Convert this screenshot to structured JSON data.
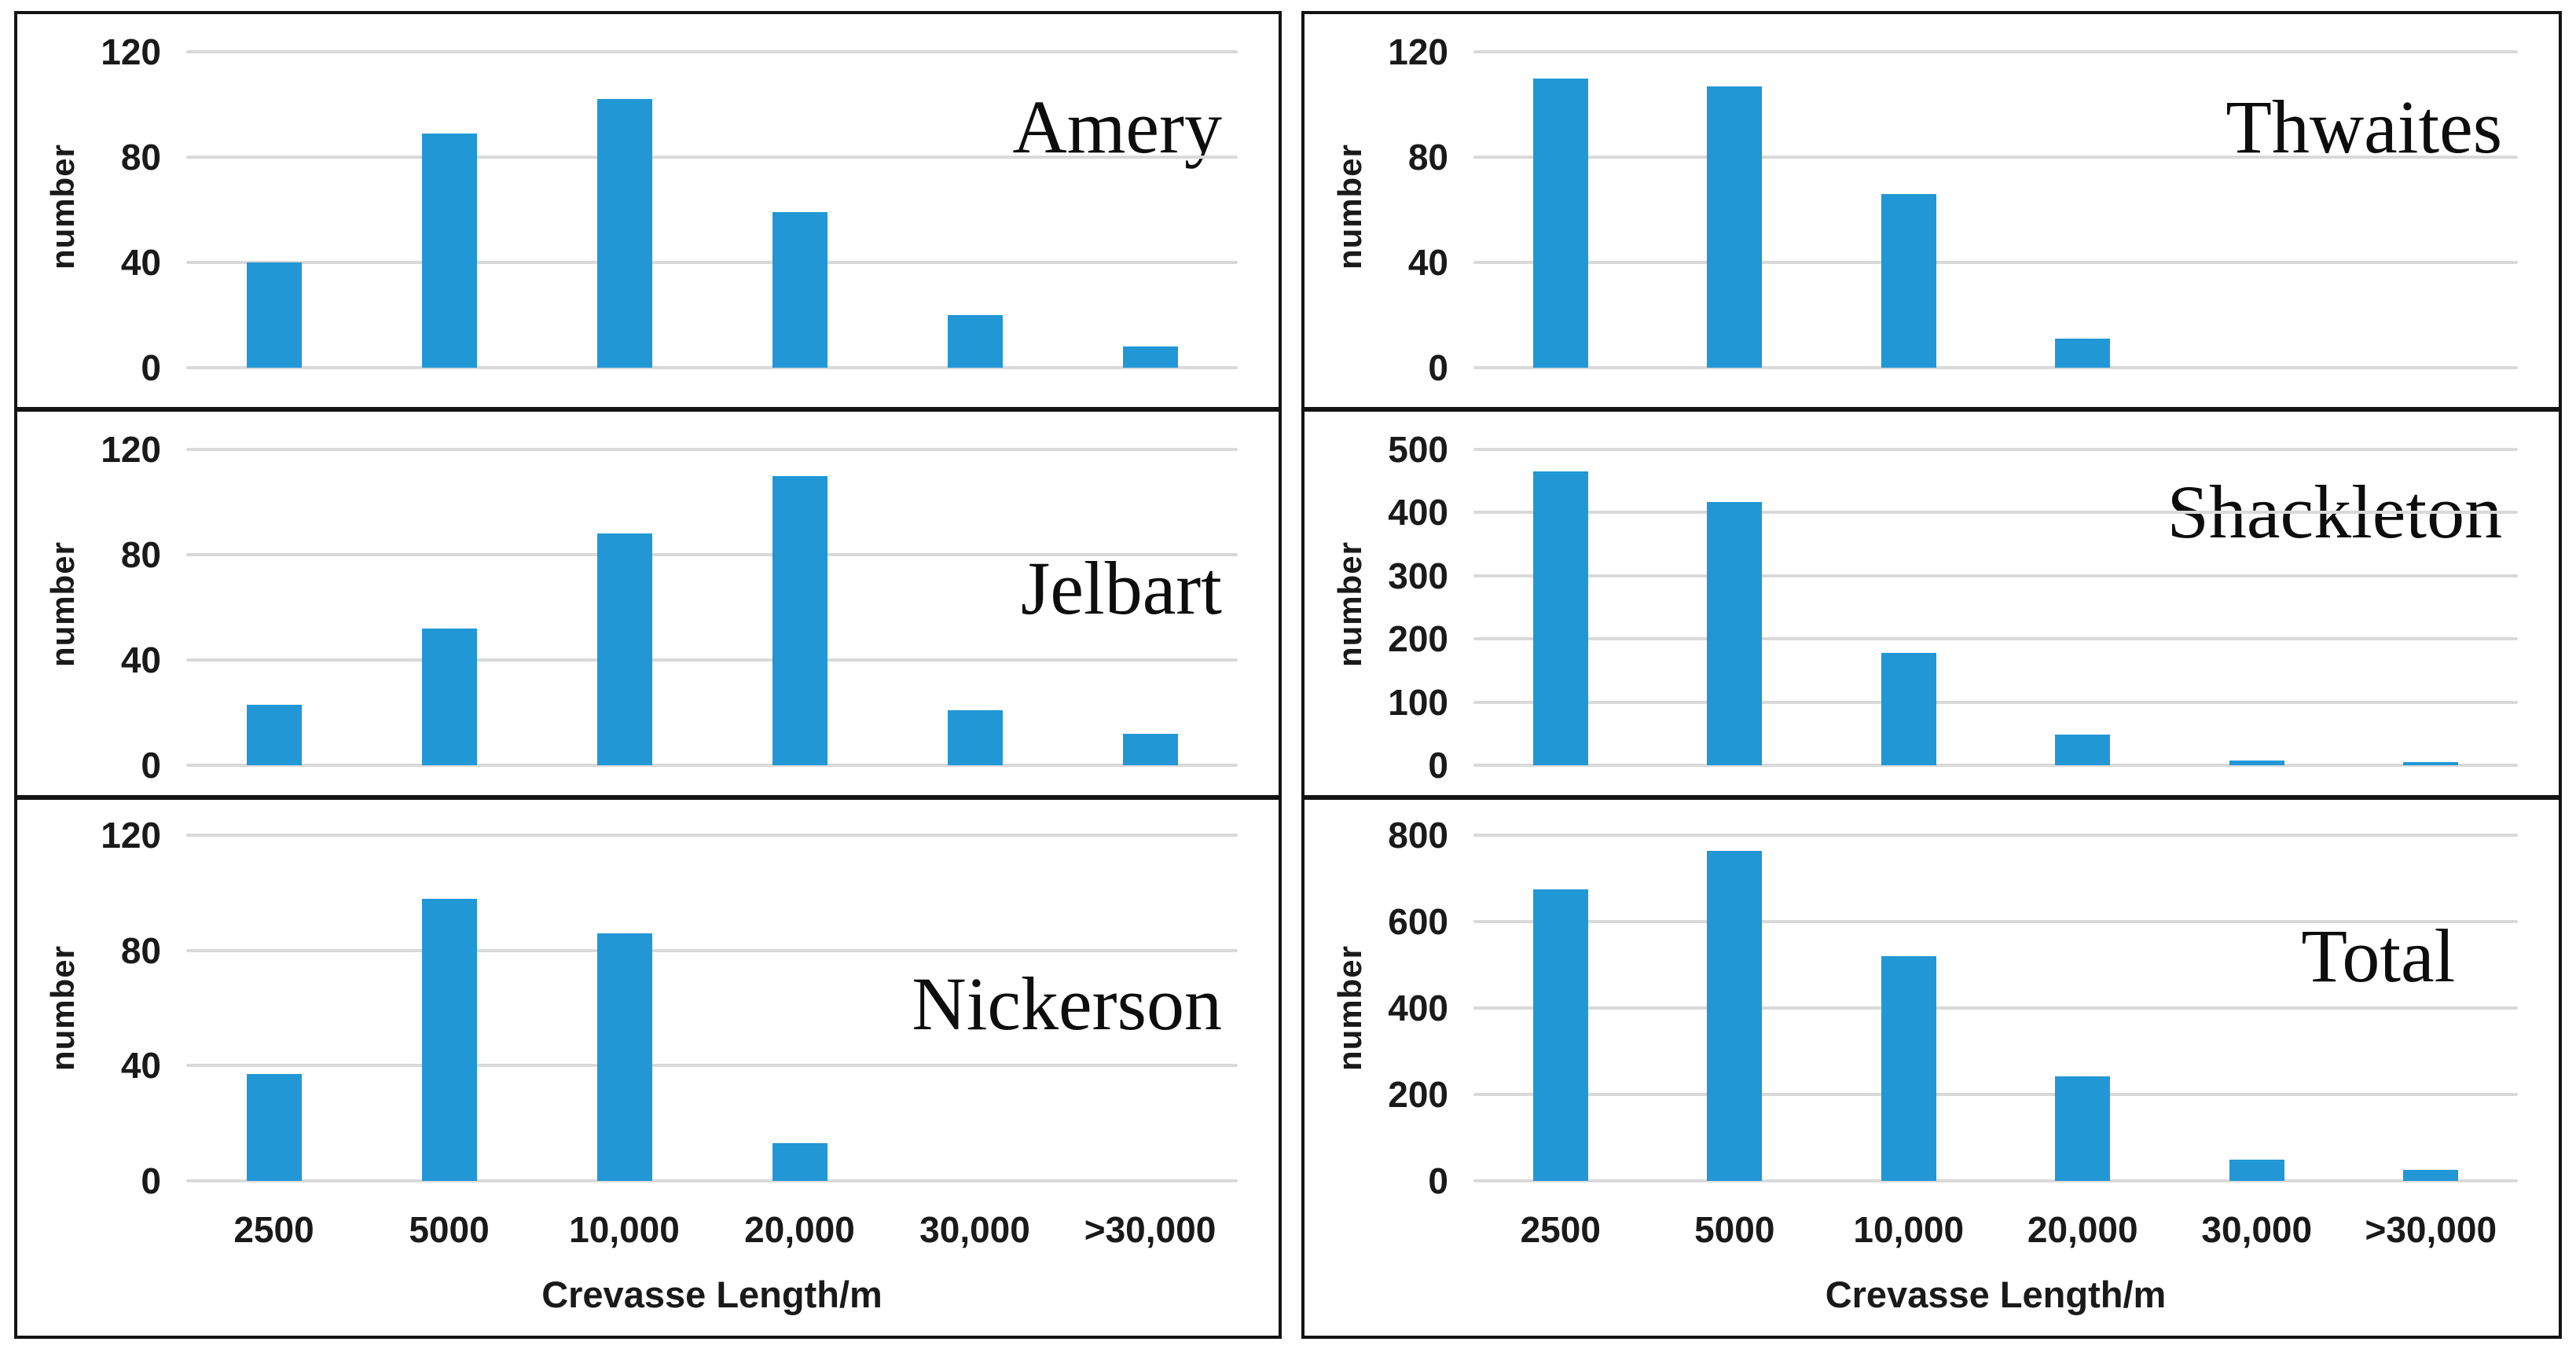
{
  "figure": {
    "description": "Histograms of crevasse length for five Antarctic ice shelves and their total",
    "xlabel": "Crevasse Length/m",
    "ylabel": "number",
    "categories": [
      "2500",
      "5000",
      "10,000",
      "20,000",
      "30,000",
      ">30,000"
    ],
    "bar_color": "#2197D6",
    "grid_color": "#D9D9D9",
    "text_color": "#1A1A1A"
  },
  "chart_data": [
    {
      "type": "bar",
      "title": "Amery",
      "xlabel": "Crevasse Length/m",
      "ylabel": "number",
      "categories": [
        "2500",
        "5000",
        "10,000",
        "20,000",
        "30,000",
        ">30,000"
      ],
      "values": [
        40,
        89,
        102,
        59,
        20,
        8
      ],
      "ylim": [
        0,
        120
      ],
      "yticks": [
        0,
        40,
        80,
        120
      ],
      "grid": true,
      "legend": "none"
    },
    {
      "type": "bar",
      "title": "Jelbart",
      "xlabel": "Crevasse Length/m",
      "ylabel": "number",
      "categories": [
        "2500",
        "5000",
        "10,000",
        "20,000",
        "30,000",
        ">30,000"
      ],
      "values": [
        23,
        52,
        88,
        110,
        21,
        12
      ],
      "ylim": [
        0,
        120
      ],
      "yticks": [
        0,
        40,
        80,
        120
      ],
      "grid": true,
      "legend": "none"
    },
    {
      "type": "bar",
      "title": "Nickerson",
      "xlabel": "Crevasse Length/m",
      "ylabel": "number",
      "categories": [
        "2500",
        "5000",
        "10,000",
        "20,000",
        "30,000",
        ">30,000"
      ],
      "values": [
        37,
        98,
        86,
        13,
        0,
        0
      ],
      "ylim": [
        0,
        120
      ],
      "yticks": [
        0,
        40,
        80,
        120
      ],
      "grid": true,
      "legend": "none"
    },
    {
      "type": "bar",
      "title": "Thwaites",
      "xlabel": "Crevasse Length/m",
      "ylabel": "number",
      "categories": [
        "2500",
        "5000",
        "10,000",
        "20,000",
        "30,000",
        ">30,000"
      ],
      "values": [
        110,
        107,
        66,
        11,
        0,
        0
      ],
      "ylim": [
        0,
        120
      ],
      "yticks": [
        0,
        40,
        80,
        120
      ],
      "grid": true,
      "legend": "none"
    },
    {
      "type": "bar",
      "title": "Shackleton",
      "xlabel": "Crevasse Length/m",
      "ylabel": "number",
      "categories": [
        "2500",
        "5000",
        "10,000",
        "20,000",
        "30,000",
        ">30,000"
      ],
      "values": [
        465,
        417,
        178,
        48,
        8,
        5
      ],
      "ylim": [
        0,
        500
      ],
      "yticks": [
        0,
        100,
        200,
        300,
        400,
        500
      ],
      "grid": true,
      "legend": "none"
    },
    {
      "type": "bar",
      "title": "Total",
      "xlabel": "Crevasse Length/m",
      "ylabel": "number",
      "categories": [
        "2500",
        "5000",
        "10,000",
        "20,000",
        "30,000",
        ">30,000"
      ],
      "values": [
        675,
        763,
        520,
        241,
        49,
        25
      ],
      "ylim": [
        0,
        800
      ],
      "yticks": [
        0,
        200,
        400,
        600,
        800
      ],
      "grid": true,
      "legend": "none"
    }
  ]
}
